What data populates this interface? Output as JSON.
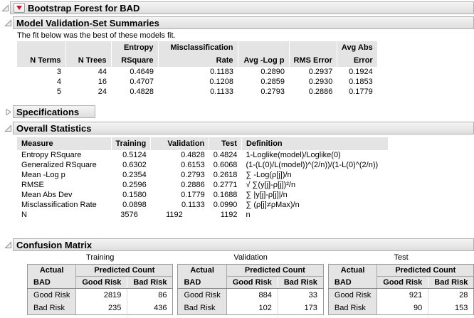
{
  "colors": {
    "red_triangle": "#cf1020",
    "outline_bar_top": "#f4f4f4",
    "outline_bar_bottom": "#dedede",
    "outline_bar_border": "#b0b0b0",
    "table_header_bg": "#e4e4e4",
    "table_border": "#999999"
  },
  "icons": {
    "red_triangle_menu": "red-triangle-down",
    "disclosure_open": "open-triangle",
    "disclosure_collapsed": "right-triangle"
  },
  "outline": {
    "root_title": "Bootstrap Forest for BAD",
    "summaries_title": "Model Validation-Set Summaries",
    "summaries_note": "The fit below was the best of these models fit.",
    "specifications_title": "Specifications",
    "overall_title": "Overall Statistics",
    "confusion_title": "Confusion Matrix"
  },
  "summary_table": {
    "header_top": [
      "",
      "",
      "Entropy",
      "Misclassification",
      "",
      "",
      "Avg Abs"
    ],
    "header_bottom": [
      "N Terms",
      "N Trees",
      "RSquare",
      "Rate",
      "Avg -Log p",
      "RMS Error",
      "Error"
    ],
    "rows": [
      [
        "3",
        "44",
        "0.4649",
        "0.1183",
        "0.2890",
        "0.2937",
        "0.1924"
      ],
      [
        "4",
        "16",
        "0.4707",
        "0.1208",
        "0.2859",
        "0.2930",
        "0.1853"
      ],
      [
        "5",
        "24",
        "0.4828",
        "0.1133",
        "0.2793",
        "0.2886",
        "0.1779"
      ]
    ]
  },
  "overall_table": {
    "headers": [
      "Measure",
      "Training",
      "Validation",
      "Test",
      "Definition"
    ],
    "rows": [
      [
        "Entropy RSquare",
        "0.5124",
        "0.4828",
        "0.4824",
        "1-Loglike(model)/Loglike(0)"
      ],
      [
        "Generalized RSquare",
        "0.6302",
        "0.6153",
        "0.6068",
        "(1-(L(0)/L(model))^(2/n))/(1-L(0)^(2/n))"
      ],
      [
        "Mean -Log p",
        "0.2354",
        "0.2793",
        "0.2618",
        "∑ -Log(ρ[j])/n"
      ],
      [
        "RMSE",
        "0.2596",
        "0.2886",
        "0.2771",
        "√ ∑(y[j]-ρ[j])²/n"
      ],
      [
        "Mean Abs Dev",
        "0.1580",
        "0.1779",
        "0.1688",
        "∑ |y[j]-ρ[j]|/n"
      ],
      [
        "Misclassification Rate",
        "0.0898",
        "0.1133",
        "0.0990",
        "∑ (ρ[j]≠ρMax)/n"
      ],
      [
        "N",
        "3576",
        "1192",
        "1192",
        "n"
      ]
    ]
  },
  "confusion": {
    "header": {
      "actual": "Actual",
      "predicted": "Predicted Count",
      "response": "BAD",
      "cols": [
        "Good Risk",
        "Bad Risk"
      ]
    },
    "matrices": [
      {
        "title": "Training",
        "rows": [
          [
            "Good Risk",
            "2819",
            "86"
          ],
          [
            "Bad Risk",
            "235",
            "436"
          ]
        ]
      },
      {
        "title": "Validation",
        "rows": [
          [
            "Good Risk",
            "884",
            "33"
          ],
          [
            "Bad Risk",
            "102",
            "173"
          ]
        ]
      },
      {
        "title": "Test",
        "rows": [
          [
            "Good Risk",
            "921",
            "28"
          ],
          [
            "Bad Risk",
            "90",
            "153"
          ]
        ]
      }
    ]
  }
}
